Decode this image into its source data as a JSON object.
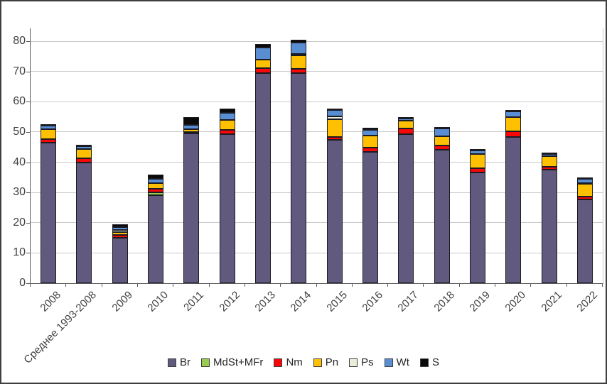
{
  "figure": {
    "background": "#ffffff",
    "border_color": "#3f3f3f",
    "gridline_color": "#c9c9c9",
    "axis_color": "#595959",
    "label_color": "#3f3f3f"
  },
  "chart_data": {
    "type": "bar",
    "stacked": true,
    "title": "",
    "xlabel": "",
    "ylabel": "",
    "grid": true,
    "legend_position": "bottom",
    "ylim": [
      0,
      80
    ],
    "yticks": [
      0,
      10,
      20,
      30,
      40,
      50,
      60,
      70,
      80
    ],
    "categories": [
      "2008",
      "Среднее 1993-2008",
      "2009",
      "2010",
      "2011",
      "2012",
      "2013",
      "2014",
      "2015",
      "2016",
      "2017",
      "2018",
      "2019",
      "2020",
      "2021",
      "2022"
    ],
    "series": [
      {
        "name": "Br",
        "color": "#615a7e",
        "values": [
          46.5,
          40.0,
          15.0,
          29.0,
          49.4,
          49.3,
          69.5,
          69.5,
          47.5,
          43.5,
          49.3,
          44.0,
          36.5,
          48.3,
          37.5,
          27.8
        ]
      },
      {
        "name": "MdSt+MFr",
        "color": "#99cc4e",
        "values": [
          0,
          0,
          0,
          1.0,
          0,
          0,
          0,
          0,
          0,
          0,
          0,
          0,
          0,
          0,
          0,
          0
        ]
      },
      {
        "name": "Nm",
        "color": "#f90606",
        "values": [
          1.2,
          1.2,
          1.0,
          1.3,
          0.5,
          1.4,
          1.7,
          1.4,
          0.8,
          1.2,
          1.8,
          1.6,
          1.4,
          1.8,
          1.0,
          0.9
        ]
      },
      {
        "name": "Pn",
        "color": "#fec000",
        "values": [
          3.3,
          3.2,
          1.0,
          1.9,
          1.1,
          3.2,
          2.8,
          4.3,
          6.0,
          4.0,
          2.7,
          3.0,
          4.7,
          4.9,
          3.6,
          4.2
        ]
      },
      {
        "name": "Ps",
        "color": "#e9eed8",
        "values": [
          0,
          0,
          0.5,
          0,
          0,
          0,
          0,
          0.5,
          0.8,
          0,
          0,
          0,
          0,
          0,
          0,
          0.3
        ]
      },
      {
        "name": "Wt",
        "color": "#5a8ed2",
        "values": [
          1.0,
          0.8,
          1.0,
          1.2,
          1.3,
          2.4,
          4.0,
          3.8,
          2.2,
          2.0,
          0.7,
          2.6,
          1.2,
          1.7,
          0.6,
          1.2
        ]
      },
      {
        "name": "S",
        "color": "#0a0a0a",
        "values": [
          0.3,
          0.3,
          1.0,
          1.5,
          2.7,
          1.5,
          1.0,
          1.0,
          0.3,
          0.8,
          0.5,
          0.3,
          0.5,
          0.3,
          0.3,
          0.2
        ]
      }
    ]
  }
}
